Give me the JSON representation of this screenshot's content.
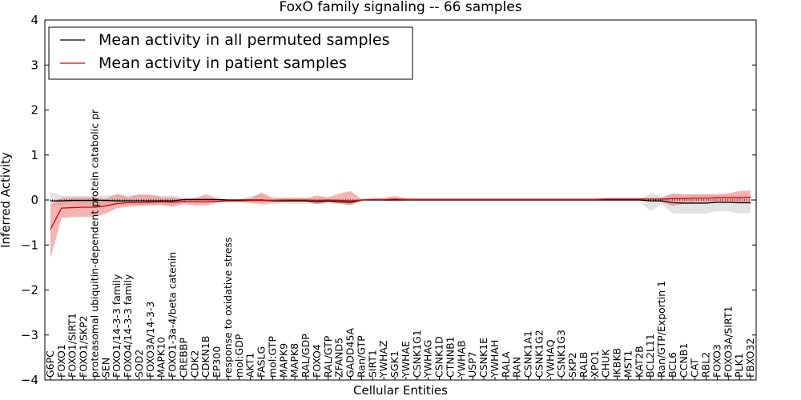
{
  "chart_data": {
    "type": "line",
    "title": "FoxO family signaling -- 66 samples",
    "xlabel": "Cellular Entities",
    "ylabel": "Inferred Activity",
    "ylim": [
      -4,
      4
    ],
    "yticks": [
      -4,
      -3,
      -2,
      -1,
      0,
      1,
      2,
      3,
      4
    ],
    "grid": false,
    "legend_placement": "top-left",
    "categories": [
      "G6PC",
      "FOXO1",
      "FOXO1/SIRT1",
      "FOXO1/SKP2",
      "proteasomal ubiquitin-dependent protein catabolic pr",
      "SEN",
      "FOXO1/14-3-3 family",
      "FOXO4/14-3-3 family",
      "SOD2",
      "FOXO3A/14-3-3",
      "MAPK10",
      "FOXO1-3a-4/beta catenin",
      "CREBBP",
      "CDK2",
      "CDKN1B",
      "EP300",
      "response to oxidative stress",
      "mol:GDP",
      "AKT1",
      "FASLG",
      "mol:GTP",
      "MAPK9",
      "MAPK8",
      "RAL/GDP",
      "FOXO4",
      "RAL/GTP",
      "ZFAND5",
      "GADD45A",
      "Ran/GTP",
      "SIRT1",
      "YWHAZ",
      "SGK1",
      "YWHAE",
      "CSNK1G1",
      "YWHAG",
      "CSNK1D",
      "CTNNB1",
      "YWHAB",
      "USP7",
      "CSNK1E",
      "YWHAH",
      "RALA",
      "RAN",
      "CSNK1A1",
      "CSNK1G2",
      "YWHAQ",
      "CSNK1G3",
      "SKP2",
      "RALB",
      "XPO1",
      "CHUK",
      "IKBKB",
      "MST1",
      "KAT2B",
      "BCL2L11",
      "Ran/GTP/Exportin 1",
      "BCL6",
      "CCNB1",
      "CAT",
      "RBL2",
      "FOXO3",
      "FOXO3A/SIRT1",
      "PLK1",
      "FBXO32"
    ],
    "series": [
      {
        "name": "Mean activity in all permuted samples",
        "color": "#000000",
        "band_color": "#c0c0c0",
        "values": [
          -0.02,
          -0.02,
          -0.01,
          -0.01,
          -0.01,
          -0.01,
          -0.02,
          -0.02,
          -0.02,
          -0.02,
          -0.02,
          -0.02,
          0.01,
          0.01,
          0.01,
          0.01,
          0.0,
          0.0,
          0.0,
          0.0,
          -0.02,
          -0.02,
          -0.02,
          -0.02,
          -0.04,
          -0.02,
          -0.04,
          -0.05,
          0.0,
          0.0,
          0.0,
          0.0,
          0.0,
          0.0,
          0.0,
          0.0,
          0.0,
          0.0,
          0.0,
          0.0,
          0.0,
          0.0,
          0.0,
          0.0,
          0.0,
          0.0,
          0.0,
          0.0,
          0.0,
          0.0,
          0.0,
          0.0,
          0.0,
          0.0,
          -0.02,
          -0.02,
          -0.06,
          -0.07,
          -0.07,
          -0.07,
          -0.05,
          -0.05,
          -0.06,
          -0.06
        ],
        "band_low": [
          -0.12,
          -0.12,
          -0.11,
          -0.11,
          -0.11,
          -0.11,
          -0.11,
          -0.11,
          -0.11,
          -0.11,
          -0.11,
          -0.11,
          -0.05,
          -0.05,
          -0.05,
          -0.05,
          -0.03,
          -0.03,
          -0.08,
          -0.12,
          -0.09,
          -0.08,
          -0.08,
          -0.08,
          -0.09,
          -0.08,
          -0.09,
          -0.11,
          -0.02,
          -0.02,
          -0.02,
          -0.02,
          -0.02,
          -0.02,
          -0.02,
          -0.02,
          -0.02,
          -0.02,
          -0.02,
          -0.02,
          -0.02,
          -0.02,
          -0.02,
          -0.02,
          -0.02,
          -0.02,
          -0.02,
          -0.02,
          -0.02,
          -0.02,
          -0.02,
          -0.02,
          -0.02,
          -0.02,
          -0.25,
          -0.1,
          -0.3,
          -0.3,
          -0.3,
          -0.3,
          -0.25,
          -0.25,
          -0.3,
          -0.3
        ],
        "band_high": [
          0.18,
          0.1,
          0.09,
          0.09,
          0.09,
          0.1,
          0.11,
          0.11,
          0.11,
          0.1,
          0.1,
          0.1,
          0.06,
          0.06,
          0.05,
          0.05,
          0.03,
          0.03,
          0.08,
          0.11,
          0.06,
          0.06,
          0.06,
          0.05,
          0.04,
          0.05,
          0.04,
          0.03,
          0.02,
          0.02,
          0.02,
          0.02,
          0.02,
          0.02,
          0.02,
          0.02,
          0.02,
          0.02,
          0.02,
          0.02,
          0.02,
          0.02,
          0.02,
          0.02,
          0.02,
          0.02,
          0.02,
          0.02,
          0.02,
          0.02,
          0.02,
          0.02,
          0.02,
          0.02,
          0.15,
          0.08,
          0.12,
          0.12,
          0.12,
          0.12,
          0.1,
          0.1,
          0.12,
          0.1
        ]
      },
      {
        "name": "Mean activity in patient samples",
        "color": "#e00000",
        "band_color": "#f08080",
        "values": [
          -0.65,
          -0.18,
          -0.17,
          -0.16,
          -0.16,
          -0.13,
          -0.08,
          -0.06,
          -0.06,
          -0.05,
          -0.04,
          -0.05,
          -0.03,
          -0.04,
          -0.04,
          -0.03,
          -0.02,
          -0.02,
          -0.01,
          -0.01,
          -0.01,
          0.0,
          0.0,
          0.0,
          -0.01,
          0.0,
          -0.01,
          -0.02,
          0.0,
          0.01,
          0.01,
          0.02,
          0.01,
          0.01,
          0.01,
          0.01,
          0.01,
          0.01,
          0.01,
          0.01,
          0.01,
          0.01,
          0.01,
          0.01,
          0.01,
          0.01,
          0.01,
          0.01,
          0.01,
          0.01,
          0.02,
          0.02,
          0.02,
          0.02,
          0.02,
          0.02,
          0.03,
          0.03,
          0.04,
          0.04,
          0.05,
          0.05,
          0.05,
          0.06
        ],
        "band_low": [
          -1.3,
          -0.4,
          -0.38,
          -0.37,
          -0.37,
          -0.3,
          -0.18,
          -0.15,
          -0.13,
          -0.12,
          -0.11,
          -0.15,
          -0.09,
          -0.12,
          -0.12,
          -0.06,
          -0.04,
          -0.04,
          -0.06,
          -0.08,
          -0.05,
          -0.04,
          -0.04,
          -0.04,
          -0.09,
          -0.05,
          -0.08,
          -0.12,
          -0.02,
          -0.01,
          -0.01,
          -0.03,
          -0.01,
          -0.01,
          -0.01,
          -0.01,
          -0.01,
          -0.01,
          -0.01,
          -0.01,
          -0.01,
          -0.01,
          -0.01,
          -0.01,
          -0.01,
          -0.01,
          -0.01,
          -0.01,
          -0.01,
          -0.01,
          -0.01,
          -0.01,
          -0.01,
          -0.01,
          -0.02,
          -0.05,
          -0.13,
          -0.08,
          -0.06,
          -0.05,
          -0.05,
          -0.06,
          -0.08,
          -0.09
        ],
        "band_high": [
          -0.1,
          0.05,
          0.06,
          0.06,
          0.06,
          0.03,
          0.14,
          0.06,
          0.13,
          0.12,
          0.06,
          0.06,
          0.02,
          0.04,
          0.13,
          0.03,
          0.01,
          0.01,
          0.04,
          0.17,
          0.04,
          0.04,
          0.04,
          0.04,
          0.1,
          0.06,
          0.14,
          0.2,
          0.02,
          0.04,
          0.04,
          0.09,
          0.04,
          0.04,
          0.04,
          0.04,
          0.04,
          0.04,
          0.04,
          0.04,
          0.04,
          0.04,
          0.04,
          0.04,
          0.04,
          0.04,
          0.04,
          0.04,
          0.04,
          0.04,
          0.05,
          0.05,
          0.05,
          0.05,
          0.05,
          0.05,
          0.15,
          0.12,
          0.13,
          0.13,
          0.13,
          0.15,
          0.2,
          0.21
        ]
      }
    ]
  }
}
